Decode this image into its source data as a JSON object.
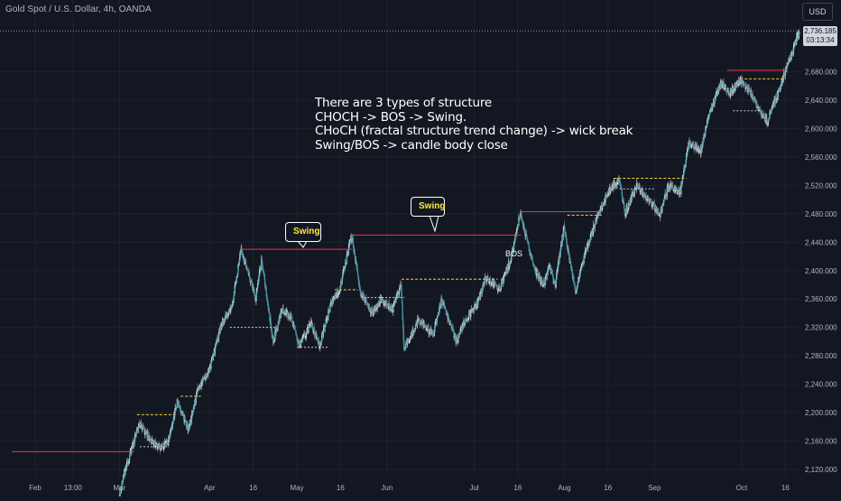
{
  "header": {
    "symbol_title": "Gold Spot / U.S. Dollar, 4h, OANDA"
  },
  "toolbar": {
    "currency_label": "USD"
  },
  "price_tag": {
    "value": "2,736.185",
    "countdown": "03:13:34"
  },
  "annotations": {
    "note_lines": [
      "There are 3 types of structure",
      "CHOCH -> BOS ->  Swing.",
      "CHoCH (fractal structure trend change) -> wick break",
      "Swing/BOS -> candle body close"
    ],
    "swing_label_1": "Swing",
    "swing_label_2": "Swing",
    "bos_label": "BOS"
  },
  "colors": {
    "background": "#131722",
    "bull_candle": "#d8dade",
    "bear_candle": "#7c7f8a",
    "zigzag": "#26a6b8",
    "swing_line": "#f23645",
    "bos_dash": "#f5d33a",
    "choch_dash": "#ffffff",
    "grid": "#1e222d",
    "axis_text": "#b2b5be"
  },
  "chart_data": {
    "type": "candlestick",
    "symbol": "Gold Spot / U.S. Dollar",
    "timeframe": "4h",
    "source": "OANDA",
    "ylim": [
      2100,
      2760
    ],
    "y_ticks": [
      2120,
      2160,
      2200,
      2240,
      2280,
      2320,
      2360,
      2400,
      2440,
      2480,
      2520,
      2560,
      2600,
      2640,
      2680
    ],
    "y_tick_labels": [
      "2,120.000",
      "2,160.000",
      "2,200.000",
      "2,240.000",
      "2,280.000",
      "2,320.000",
      "2,360.000",
      "2,400.000",
      "2,440.000",
      "2,480.000",
      "2,520.000",
      "2,560.000",
      "2,600.000",
      "2,640.000",
      "2,680.000"
    ],
    "x_ticks": [
      {
        "label": "Feb",
        "date": "2024-02-01"
      },
      {
        "label": "13:00",
        "date": "2024-02-14"
      },
      {
        "label": "Mar",
        "date": "2024-03-01"
      },
      {
        "label": "Apr",
        "date": "2024-04-01"
      },
      {
        "label": "16",
        "date": "2024-04-16"
      },
      {
        "label": "May",
        "date": "2024-05-01"
      },
      {
        "label": "16",
        "date": "2024-05-16"
      },
      {
        "label": "Jun",
        "date": "2024-06-01"
      },
      {
        "label": "Jul",
        "date": "2024-07-01"
      },
      {
        "label": "16",
        "date": "2024-07-16"
      },
      {
        "label": "Aug",
        "date": "2024-08-01"
      },
      {
        "label": "16",
        "date": "2024-08-16"
      },
      {
        "label": "Sep",
        "date": "2024-09-01"
      },
      {
        "label": "Oct",
        "date": "2024-10-01"
      },
      {
        "label": "16",
        "date": "2024-10-16"
      }
    ],
    "last_price": 2736.185,
    "price_path": [
      [
        "2024-03-01",
        2085
      ],
      [
        "2024-03-04",
        2130
      ],
      [
        "2024-03-08",
        2185
      ],
      [
        "2024-03-12",
        2160
      ],
      [
        "2024-03-15",
        2150
      ],
      [
        "2024-03-18",
        2158
      ],
      [
        "2024-03-21",
        2215
      ],
      [
        "2024-03-25",
        2175
      ],
      [
        "2024-03-28",
        2232
      ],
      [
        "2024-04-01",
        2260
      ],
      [
        "2024-04-05",
        2320
      ],
      [
        "2024-04-09",
        2355
      ],
      [
        "2024-04-12",
        2430
      ],
      [
        "2024-04-15",
        2390
      ],
      [
        "2024-04-17",
        2360
      ],
      [
        "2024-04-19",
        2415
      ],
      [
        "2024-04-23",
        2300
      ],
      [
        "2024-04-26",
        2345
      ],
      [
        "2024-04-29",
        2335
      ],
      [
        "2024-05-02",
        2295
      ],
      [
        "2024-05-06",
        2325
      ],
      [
        "2024-05-09",
        2295
      ],
      [
        "2024-05-13",
        2355
      ],
      [
        "2024-05-16",
        2375
      ],
      [
        "2024-05-20",
        2450
      ],
      [
        "2024-05-23",
        2370
      ],
      [
        "2024-05-27",
        2340
      ],
      [
        "2024-05-30",
        2360
      ],
      [
        "2024-06-03",
        2345
      ],
      [
        "2024-06-06",
        2380
      ],
      [
        "2024-06-07",
        2290
      ],
      [
        "2024-06-12",
        2330
      ],
      [
        "2024-06-17",
        2310
      ],
      [
        "2024-06-20",
        2360
      ],
      [
        "2024-06-25",
        2300
      ],
      [
        "2024-06-28",
        2330
      ],
      [
        "2024-07-02",
        2350
      ],
      [
        "2024-07-05",
        2390
      ],
      [
        "2024-07-10",
        2375
      ],
      [
        "2024-07-14",
        2420
      ],
      [
        "2024-07-17",
        2480
      ],
      [
        "2024-07-22",
        2400
      ],
      [
        "2024-07-25",
        2380
      ],
      [
        "2024-07-27",
        2405
      ],
      [
        "2024-07-29",
        2380
      ],
      [
        "2024-08-01",
        2460
      ],
      [
        "2024-08-05",
        2370
      ],
      [
        "2024-08-08",
        2420
      ],
      [
        "2024-08-12",
        2470
      ],
      [
        "2024-08-16",
        2510
      ],
      [
        "2024-08-20",
        2530
      ],
      [
        "2024-08-22",
        2480
      ],
      [
        "2024-08-26",
        2520
      ],
      [
        "2024-08-29",
        2505
      ],
      [
        "2024-09-03",
        2480
      ],
      [
        "2024-09-06",
        2520
      ],
      [
        "2024-09-10",
        2510
      ],
      [
        "2024-09-13",
        2580
      ],
      [
        "2024-09-17",
        2570
      ],
      [
        "2024-09-20",
        2620
      ],
      [
        "2024-09-24",
        2665
      ],
      [
        "2024-09-27",
        2650
      ],
      [
        "2024-10-01",
        2670
      ],
      [
        "2024-10-04",
        2650
      ],
      [
        "2024-10-08",
        2620
      ],
      [
        "2024-10-10",
        2610
      ],
      [
        "2024-10-14",
        2655
      ],
      [
        "2024-10-17",
        2690
      ],
      [
        "2024-10-21",
        2736
      ]
    ],
    "structure_levels": [
      {
        "kind": "swing",
        "price": 2145,
        "from": "2024-01-24",
        "to": "2024-03-06"
      },
      {
        "kind": "swing",
        "price": 2430,
        "from": "2024-04-12",
        "to": "2024-05-20"
      },
      {
        "kind": "swing",
        "price": 2450,
        "from": "2024-05-20",
        "to": "2024-07-17"
      },
      {
        "kind": "swing",
        "price": 2483,
        "from": "2024-07-17",
        "to": "2024-08-14"
      },
      {
        "kind": "swing",
        "price": 2682,
        "from": "2024-09-26",
        "to": "2024-10-16"
      },
      {
        "kind": "bos",
        "price": 2197,
        "from": "2024-03-07",
        "to": "2024-03-21"
      },
      {
        "kind": "bos",
        "price": 2223,
        "from": "2024-03-22",
        "to": "2024-03-29"
      },
      {
        "kind": "bos",
        "price": 2373,
        "from": "2024-05-14",
        "to": "2024-05-22"
      },
      {
        "kind": "bos",
        "price": 2388,
        "from": "2024-06-06",
        "to": "2024-07-09"
      },
      {
        "kind": "bos",
        "price": 2478,
        "from": "2024-08-02",
        "to": "2024-08-14"
      },
      {
        "kind": "bos",
        "price": 2530,
        "from": "2024-08-18",
        "to": "2024-09-12"
      },
      {
        "kind": "bos",
        "price": 2670,
        "from": "2024-10-02",
        "to": "2024-10-16"
      },
      {
        "kind": "choch",
        "price": 2152,
        "from": "2024-03-08",
        "to": "2024-03-18"
      },
      {
        "kind": "choch",
        "price": 2320,
        "from": "2024-04-08",
        "to": "2024-04-24"
      },
      {
        "kind": "choch",
        "price": 2292,
        "from": "2024-05-01",
        "to": "2024-05-12"
      },
      {
        "kind": "choch",
        "price": 2362,
        "from": "2024-05-24",
        "to": "2024-06-07"
      },
      {
        "kind": "choch",
        "price": 2515,
        "from": "2024-08-20",
        "to": "2024-09-01"
      },
      {
        "kind": "choch",
        "price": 2625,
        "from": "2024-09-28",
        "to": "2024-10-08"
      }
    ]
  }
}
